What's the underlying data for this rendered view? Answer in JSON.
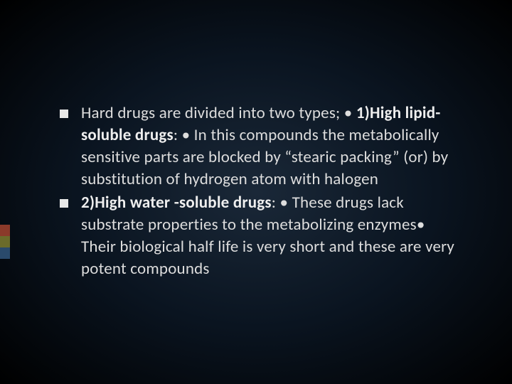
{
  "slide": {
    "background": {
      "gradient_center": "#1a2838",
      "gradient_mid": "#0a1420",
      "gradient_edge": "#000000",
      "type": "radial"
    },
    "accent_colors": [
      "#8b3a2a",
      "#6b6b2a",
      "#2a4a6b"
    ],
    "text_color": "#dddddd",
    "bold_color": "#eeeeee",
    "font_family": "Calibri",
    "font_size_pt": 23,
    "line_height": 1.35,
    "bullets": [
      {
        "pre": "Hard drugs are divided into two types; • ",
        "bold": "1)High lipid-soluble drugs",
        "post": ": • In this compounds the metabolically sensitive parts are blocked by “stearic packing” (or) by substitution of hydrogen atom with halogen"
      },
      {
        "pre": "",
        "bold": "2)High water -soluble drugs",
        "post": ": • These drugs lack substrate properties to the metabolizing enzymes• Their biological half life is very short and these are very potent compounds"
      }
    ]
  }
}
